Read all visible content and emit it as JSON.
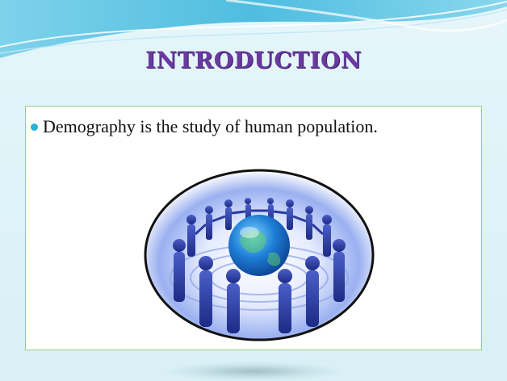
{
  "slide": {
    "title": "INTRODUCTION",
    "bullet": "Demography is the study of human population."
  },
  "colors": {
    "background": "#dff2f7",
    "title": "#6a3aa0",
    "box_border": "#8fcf87",
    "bullet": "#2bb0d6",
    "wave": "#5cc6e6"
  },
  "icons": {
    "bullet": "bullet-dot-icon",
    "emblem": "people-around-globe-icon"
  }
}
